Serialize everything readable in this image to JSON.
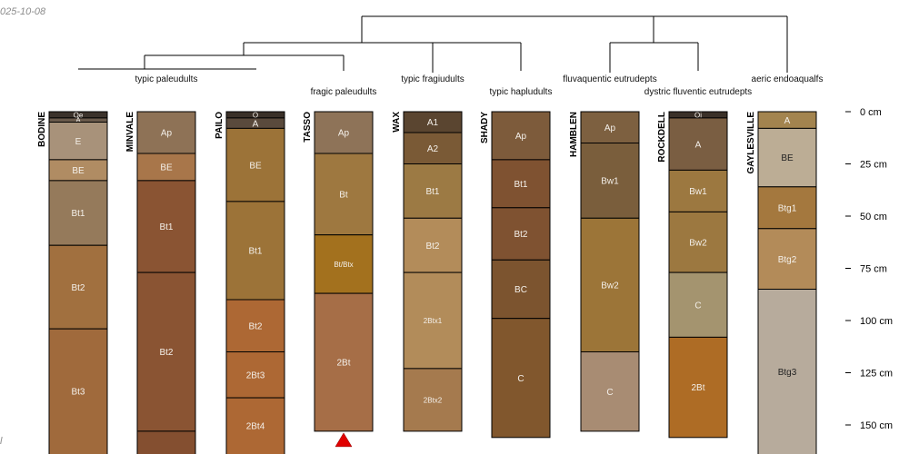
{
  "meta": {
    "date_stamp": "025-10-08",
    "footer_fragment": "l"
  },
  "taxa": [
    {
      "id": "t1",
      "label": "typic paleudults"
    },
    {
      "id": "t2",
      "label": "fragic paleudults"
    },
    {
      "id": "t3",
      "label": "typic fragiudults"
    },
    {
      "id": "t4",
      "label": "typic hapludults"
    },
    {
      "id": "t5",
      "label": "fluvaquentic eutrudepts"
    },
    {
      "id": "t6",
      "label": "dystric fluventic eutrudepts"
    },
    {
      "id": "t7",
      "label": "aeric endoaqualfs"
    }
  ],
  "depth_axis": {
    "unit": "cm",
    "ticks": [
      {
        "depth": 0,
        "label": "0 cm"
      },
      {
        "depth": 25,
        "label": "25 cm"
      },
      {
        "depth": 50,
        "label": "50 cm"
      },
      {
        "depth": 75,
        "label": "75 cm"
      },
      {
        "depth": 100,
        "label": "100 cm"
      },
      {
        "depth": 125,
        "label": "125 cm"
      },
      {
        "depth": 150,
        "label": "150 cm"
      }
    ]
  },
  "profiles": [
    {
      "name": "BODINE",
      "horizons": [
        {
          "name": "Oe",
          "top": 0,
          "bottom": 3,
          "color": "#3b322b"
        },
        {
          "name": "A",
          "top": 3,
          "bottom": 5,
          "color": "#6a5a4c"
        },
        {
          "name": "E",
          "top": 5,
          "bottom": 23,
          "color": "#a8927a"
        },
        {
          "name": "BE",
          "top": 23,
          "bottom": 33,
          "color": "#b08c63"
        },
        {
          "name": "Bt1",
          "top": 33,
          "bottom": 64,
          "color": "#957a5b"
        },
        {
          "name": "Bt2",
          "top": 64,
          "bottom": 104,
          "color": "#a1703f"
        },
        {
          "name": "Bt3",
          "top": 104,
          "bottom": 165,
          "color": "#a06a3c"
        }
      ]
    },
    {
      "name": "MINVALE",
      "horizons": [
        {
          "name": "Ap",
          "top": 0,
          "bottom": 20,
          "color": "#8e7256"
        },
        {
          "name": "BE",
          "top": 20,
          "bottom": 33,
          "color": "#a8764a"
        },
        {
          "name": "Bt1",
          "top": 33,
          "bottom": 77,
          "color": "#8a5433"
        },
        {
          "name": "Bt2",
          "top": 77,
          "bottom": 153,
          "color": "#8a5433"
        },
        {
          "name": "",
          "top": 153,
          "bottom": 165,
          "color": "#844f30"
        }
      ]
    },
    {
      "name": "PAILO",
      "horizons": [
        {
          "name": "O",
          "top": 0,
          "bottom": 3,
          "color": "#3a3028"
        },
        {
          "name": "A",
          "top": 3,
          "bottom": 8,
          "color": "#5a4a3c"
        },
        {
          "name": "BE",
          "top": 8,
          "bottom": 43,
          "color": "#9c7338"
        },
        {
          "name": "Bt1",
          "top": 43,
          "bottom": 90,
          "color": "#9c7338"
        },
        {
          "name": "Bt2",
          "top": 90,
          "bottom": 115,
          "color": "#ad6834"
        },
        {
          "name": "2Bt3",
          "top": 115,
          "bottom": 137,
          "color": "#ad6834"
        },
        {
          "name": "2Bt4",
          "top": 137,
          "bottom": 165,
          "color": "#ad6834"
        }
      ]
    },
    {
      "name": "TASSO",
      "redline": true,
      "horizons": [
        {
          "name": "Ap",
          "top": 0,
          "bottom": 20,
          "color": "#8e7358"
        },
        {
          "name": "Bt",
          "top": 20,
          "bottom": 59,
          "color": "#9e7840"
        },
        {
          "name": "Bt/Btx",
          "top": 59,
          "bottom": 87,
          "color": "#a3711e"
        },
        {
          "name": "2Bt",
          "top": 87,
          "bottom": 153,
          "color": "#a66e47"
        }
      ]
    },
    {
      "name": "WAX",
      "horizons": [
        {
          "name": "A1",
          "top": 0,
          "bottom": 10,
          "color": "#5a4530"
        },
        {
          "name": "A2",
          "top": 10,
          "bottom": 25,
          "color": "#7a5a36"
        },
        {
          "name": "Bt1",
          "top": 25,
          "bottom": 51,
          "color": "#9c7a44"
        },
        {
          "name": "Bt2",
          "top": 51,
          "bottom": 77,
          "color": "#b38c5a"
        },
        {
          "name": "2Btx1",
          "top": 77,
          "bottom": 123,
          "color": "#b28c5a"
        },
        {
          "name": "2Btx2",
          "top": 123,
          "bottom": 153,
          "color": "#a57a4e"
        }
      ]
    },
    {
      "name": "SHADY",
      "horizons": [
        {
          "name": "Ap",
          "top": 0,
          "bottom": 23,
          "color": "#7d5b3b"
        },
        {
          "name": "Bt1",
          "top": 23,
          "bottom": 46,
          "color": "#7f5231"
        },
        {
          "name": "Bt2",
          "top": 46,
          "bottom": 71,
          "color": "#7f5231"
        },
        {
          "name": "BC",
          "top": 71,
          "bottom": 99,
          "color": "#7c542f"
        },
        {
          "name": "C",
          "top": 99,
          "bottom": 156,
          "color": "#81572d"
        }
      ]
    },
    {
      "name": "HAMBLEN",
      "horizons": [
        {
          "name": "Ap",
          "top": 0,
          "bottom": 15,
          "color": "#7d6040"
        },
        {
          "name": "Bw1",
          "top": 15,
          "bottom": 51,
          "color": "#7a5e3c"
        },
        {
          "name": "Bw2",
          "top": 51,
          "bottom": 115,
          "color": "#9c7538"
        },
        {
          "name": "C",
          "top": 115,
          "bottom": 153,
          "color": "#a88c73"
        }
      ]
    },
    {
      "name": "ROCKDELL",
      "horizons": [
        {
          "name": "Oi",
          "top": 0,
          "bottom": 3,
          "color": "#3a3028"
        },
        {
          "name": "A",
          "top": 3,
          "bottom": 28,
          "color": "#7a5e42"
        },
        {
          "name": "Bw1",
          "top": 28,
          "bottom": 48,
          "color": "#9c7840"
        },
        {
          "name": "Bw2",
          "top": 48,
          "bottom": 77,
          "color": "#9c7840"
        },
        {
          "name": "C",
          "top": 77,
          "bottom": 108,
          "color": "#a4946f"
        },
        {
          "name": "2Bt",
          "top": 108,
          "bottom": 156,
          "color": "#ae6c25"
        }
      ]
    },
    {
      "name": "GAYLESVILLE",
      "horizons": [
        {
          "name": "A",
          "top": 0,
          "bottom": 8,
          "color": "#a3844f"
        },
        {
          "name": "BE",
          "top": 8,
          "bottom": 36,
          "color": "#bcad95"
        },
        {
          "name": "Btg1",
          "top": 36,
          "bottom": 56,
          "color": "#a4783e"
        },
        {
          "name": "Btg2",
          "top": 56,
          "bottom": 85,
          "color": "#b38b59"
        },
        {
          "name": "Btg3",
          "top": 85,
          "bottom": 165,
          "color": "#b7ab9c"
        }
      ]
    }
  ]
}
